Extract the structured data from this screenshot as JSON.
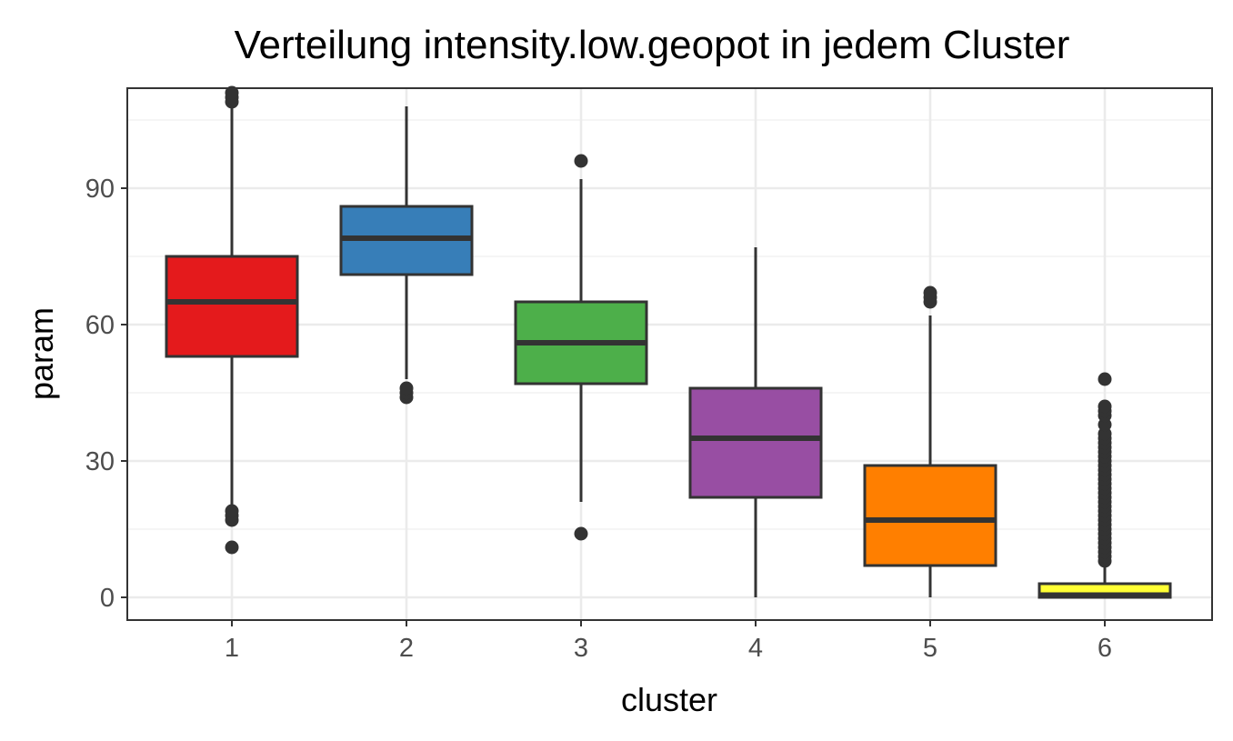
{
  "chart_data": {
    "type": "boxplot",
    "title": "Verteilung intensity.low.geopot in jedem Cluster",
    "xlabel": "cluster",
    "ylabel": "param",
    "ylim": [
      -5,
      112
    ],
    "yticks": [
      0,
      30,
      60,
      90
    ],
    "ytick_labels": [
      "0",
      "30",
      "60",
      "90"
    ],
    "categories": [
      "1",
      "2",
      "3",
      "4",
      "5",
      "6"
    ],
    "grid": true,
    "legend": "none",
    "boxes": [
      {
        "category": "1",
        "color": "#E41A1C",
        "lower_whisker": 20,
        "q1": 53,
        "median": 65,
        "q3": 75,
        "upper_whisker": 108,
        "outliers": [
          11,
          17,
          18,
          19,
          109,
          110,
          111
        ]
      },
      {
        "category": "2",
        "color": "#377EB8",
        "lower_whisker": 48,
        "q1": 71,
        "median": 79,
        "q3": 86,
        "upper_whisker": 108,
        "outliers": [
          44,
          45,
          46
        ]
      },
      {
        "category": "3",
        "color": "#4DAF4A",
        "lower_whisker": 21,
        "q1": 47,
        "median": 56,
        "q3": 65,
        "upper_whisker": 92,
        "outliers": [
          14,
          96
        ]
      },
      {
        "category": "4",
        "color": "#984EA3",
        "lower_whisker": 0,
        "q1": 22,
        "median": 35,
        "q3": 46,
        "upper_whisker": 77,
        "outliers": []
      },
      {
        "category": "5",
        "color": "#FF7F00",
        "lower_whisker": 0,
        "q1": 7,
        "median": 17,
        "q3": 29,
        "upper_whisker": 62,
        "outliers": [
          65,
          66,
          67
        ]
      },
      {
        "category": "6",
        "color": "#FFFF33",
        "lower_whisker": 0,
        "q1": 0,
        "median": 0.5,
        "q3": 3,
        "upper_whisker": 7,
        "outliers": [
          8,
          9,
          10,
          11,
          12,
          13,
          14,
          15,
          16,
          17,
          18,
          19,
          20,
          21,
          22,
          23,
          24,
          25,
          26,
          27,
          28,
          29,
          30,
          31,
          32,
          33,
          34,
          35,
          36,
          38,
          40,
          41,
          42,
          48
        ]
      }
    ]
  }
}
